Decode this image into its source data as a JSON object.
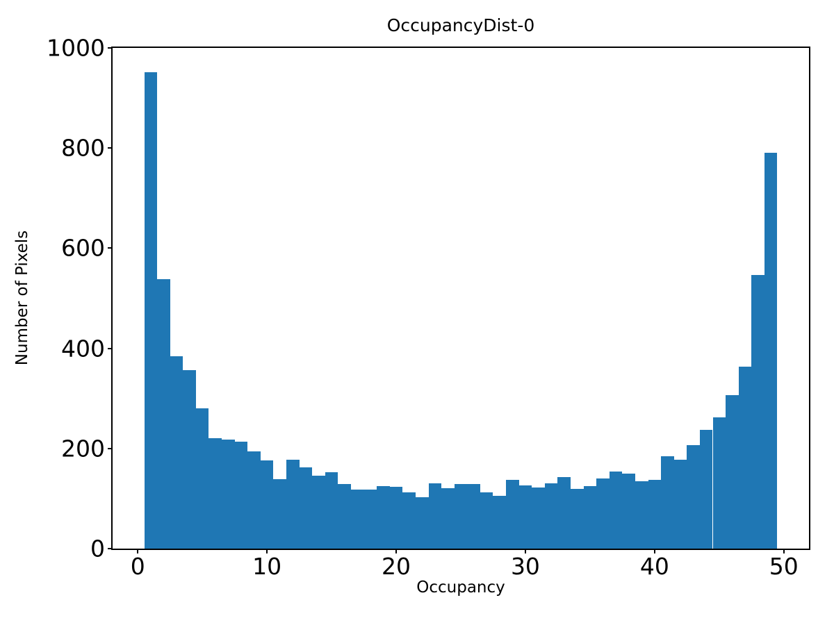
{
  "chart_data": {
    "type": "bar",
    "subtype": "histogram",
    "title": "OccupancyDist-0",
    "xlabel": "Occupancy",
    "ylabel": "Number of Pixels",
    "bar_color": "#1f77b4",
    "grid": false,
    "legend": null,
    "n_bins": 49,
    "bin_width": 1,
    "bin_start": 0.5,
    "bin_centers": [
      1,
      2,
      3,
      4,
      5,
      6,
      7,
      8,
      9,
      10,
      11,
      12,
      13,
      14,
      15,
      16,
      17,
      18,
      19,
      20,
      21,
      22,
      23,
      24,
      25,
      26,
      27,
      28,
      29,
      30,
      31,
      32,
      33,
      34,
      35,
      36,
      37,
      38,
      39,
      40,
      41,
      42,
      43,
      44,
      45,
      46,
      47,
      48,
      49
    ],
    "values": [
      952,
      538,
      384,
      357,
      280,
      221,
      218,
      213,
      194,
      176,
      139,
      178,
      162,
      145,
      152,
      129,
      118,
      118,
      125,
      123,
      113,
      102,
      130,
      120,
      129,
      129,
      113,
      105,
      137,
      126,
      122,
      131,
      143,
      119,
      125,
      140,
      154,
      150,
      135,
      137,
      184,
      177,
      206,
      237,
      262,
      307,
      364,
      547,
      790
    ],
    "xlim": [
      -1.95,
      51.95
    ],
    "ylim": [
      0,
      1000
    ],
    "xticks": [
      0,
      10,
      20,
      30,
      40,
      50
    ],
    "yticks": [
      0,
      200,
      400,
      600,
      800,
      1000
    ]
  }
}
